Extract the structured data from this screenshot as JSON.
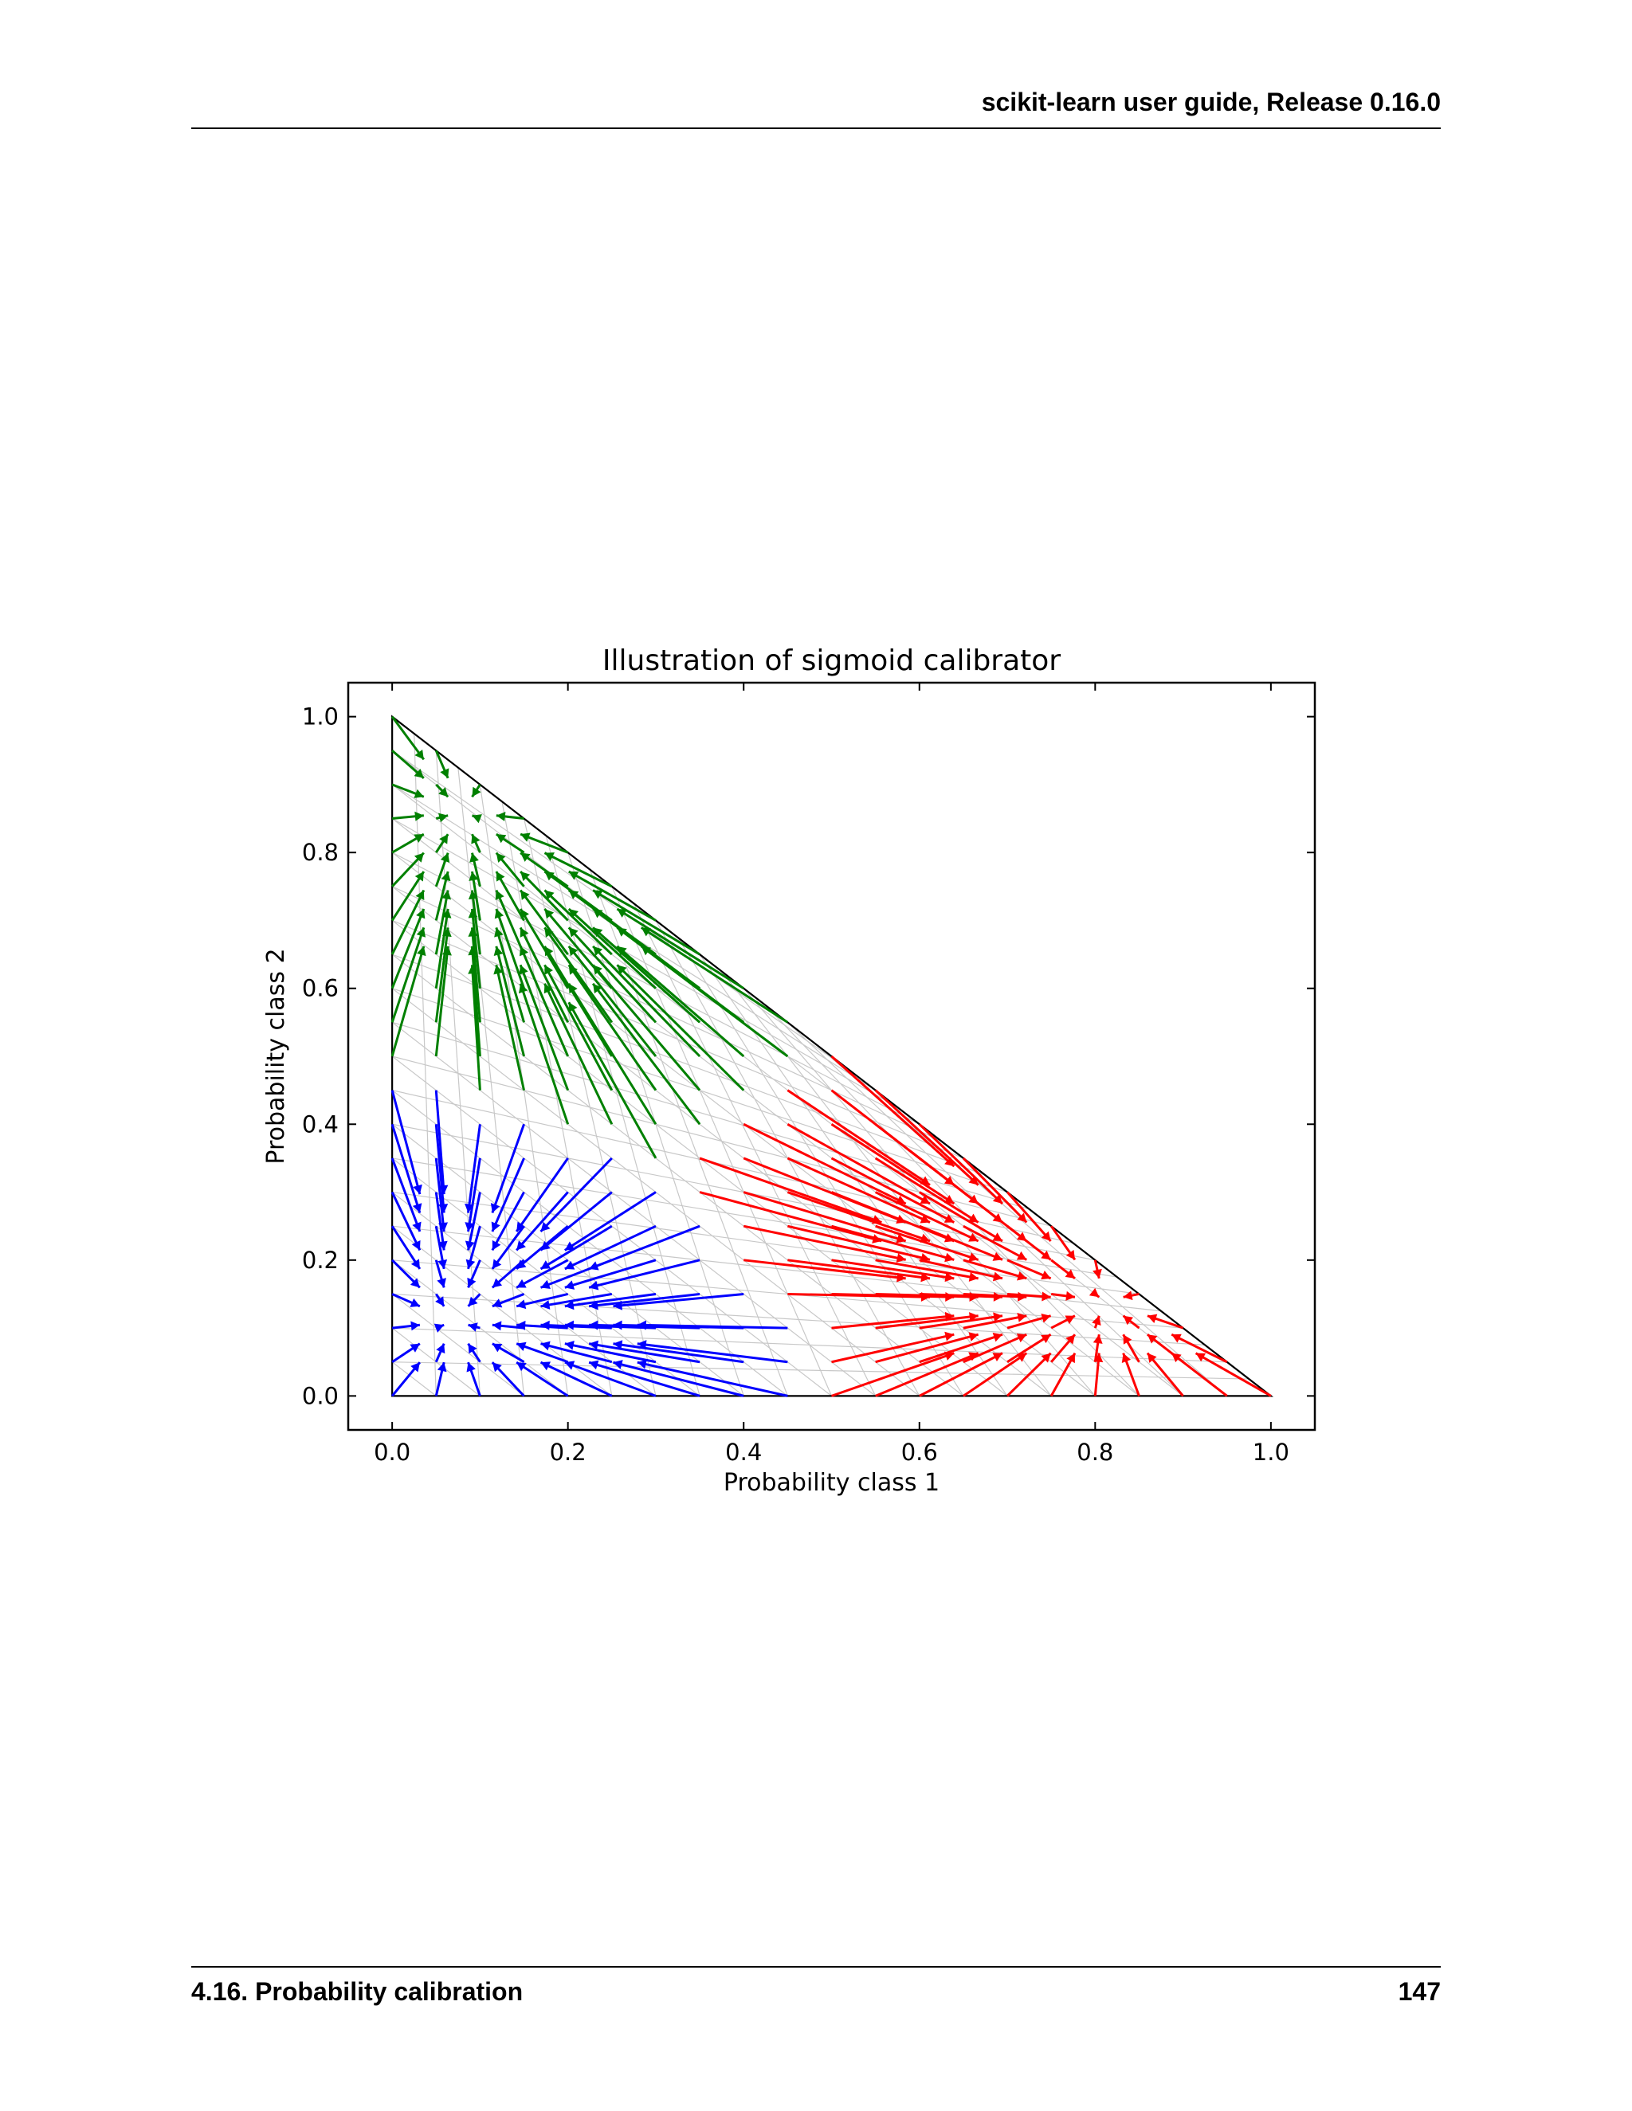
{
  "header": {
    "title": "scikit-learn user guide, Release 0.16.0"
  },
  "footer": {
    "section": "4.16.  Probability calibration",
    "page_number": "147"
  },
  "colors": {
    "class1": "#0000ff",
    "class2": "#ff0000",
    "class3": "#008000",
    "grid": "#c8c8c8",
    "axes": "#000000"
  },
  "chart_data": {
    "type": "quiver",
    "title": "Illustration of sigmoid calibrator",
    "xlabel": "Probability class 1",
    "ylabel": "Probability class 2",
    "xlim": [
      -0.05,
      1.05
    ],
    "ylim": [
      -0.05,
      1.05
    ],
    "xticks": [
      "0.0",
      "0.2",
      "0.4",
      "0.6",
      "0.8",
      "1.0"
    ],
    "yticks": [
      "0.0",
      "0.2",
      "0.4",
      "0.6",
      "0.8",
      "1.0"
    ],
    "simplex_boundary": [
      [
        0,
        0
      ],
      [
        1,
        0
      ],
      [
        0,
        1
      ]
    ],
    "attractors": [
      {
        "class": "class1",
        "point": [
          0.07,
          0.11
        ]
      },
      {
        "class": "class2",
        "point": [
          0.81,
          0.14
        ]
      },
      {
        "class": "class3",
        "point": [
          0.08,
          0.86
        ]
      }
    ],
    "arrow_grid_step": 0.05,
    "grid": true
  }
}
